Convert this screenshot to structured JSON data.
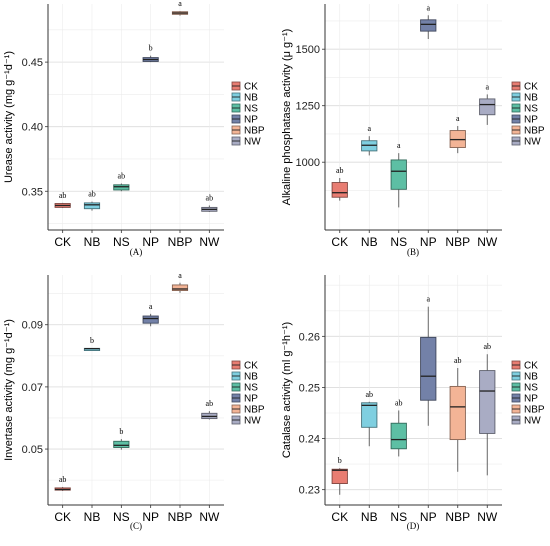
{
  "colors": {
    "CK": "#E87D72",
    "NB": "#7FCFE0",
    "NS": "#5DBFA4",
    "NP": "#7381A8",
    "NBP": "#F3B496",
    "NW": "#A9ACC4"
  },
  "chart_data": [
    {
      "type": "box",
      "panel_label": "(A)",
      "ylabel": "Urease activity (mg g⁻¹d⁻¹)",
      "categories": [
        "CK",
        "NB",
        "NS",
        "NP",
        "NBP",
        "NW"
      ],
      "ylim": [
        0.32,
        0.495
      ],
      "yticks": [
        0.35,
        0.4,
        0.45
      ],
      "ytick_labels": [
        "0.35",
        "0.40",
        "0.45"
      ],
      "grid": true,
      "legend": "right",
      "series": [
        {
          "category": "CK",
          "min": 0.337,
          "q1": 0.3375,
          "median": 0.339,
          "q3": 0.3405,
          "max": 0.341,
          "label": "ab"
        },
        {
          "category": "NB",
          "min": 0.335,
          "q1": 0.3365,
          "median": 0.3395,
          "q3": 0.341,
          "max": 0.342,
          "label": "ab"
        },
        {
          "category": "NS",
          "min": 0.35,
          "q1": 0.351,
          "median": 0.3535,
          "q3": 0.355,
          "max": 0.356,
          "label": "ab"
        },
        {
          "category": "NP",
          "min": 0.45,
          "q1": 0.4505,
          "median": 0.452,
          "q3": 0.4535,
          "max": 0.455,
          "label": "b"
        },
        {
          "category": "NBP",
          "min": 0.486,
          "q1": 0.487,
          "median": 0.488,
          "q3": 0.489,
          "max": 0.4895,
          "label": "a"
        },
        {
          "category": "NW",
          "min": 0.334,
          "q1": 0.3345,
          "median": 0.336,
          "q3": 0.3375,
          "max": 0.339,
          "label": "ab"
        }
      ]
    },
    {
      "type": "box",
      "panel_label": "(B)",
      "ylabel": "Alkaline phosphatase activity (μ g⁻¹)",
      "categories": [
        "CK",
        "NB",
        "NS",
        "NP",
        "NBP",
        "NW"
      ],
      "ylim": [
        700,
        1700
      ],
      "yticks": [
        1000,
        1250,
        1500
      ],
      "ytick_labels": [
        "1000",
        "1250",
        "1500"
      ],
      "grid": true,
      "legend": "right",
      "series": [
        {
          "category": "CK",
          "min": 830,
          "q1": 845,
          "median": 865,
          "q3": 910,
          "max": 930,
          "label": "ab"
        },
        {
          "category": "NB",
          "min": 1030,
          "q1": 1050,
          "median": 1075,
          "q3": 1095,
          "max": 1115,
          "label": "a"
        },
        {
          "category": "NS",
          "min": 800,
          "q1": 880,
          "median": 960,
          "q3": 1010,
          "max": 1040,
          "label": "a"
        },
        {
          "category": "NP",
          "min": 1545,
          "q1": 1580,
          "median": 1610,
          "q3": 1630,
          "max": 1650,
          "label": "a"
        },
        {
          "category": "NBP",
          "min": 1040,
          "q1": 1065,
          "median": 1100,
          "q3": 1140,
          "max": 1160,
          "label": "a"
        },
        {
          "category": "NW",
          "min": 1165,
          "q1": 1210,
          "median": 1255,
          "q3": 1280,
          "max": 1300,
          "label": "a"
        }
      ]
    },
    {
      "type": "box",
      "panel_label": "(C)",
      "ylabel": "Invertase activity (mg g⁻¹d⁻¹)",
      "categories": [
        "CK",
        "NB",
        "NS",
        "NP",
        "NBP",
        "NW"
      ],
      "ylim": [
        0.032,
        0.106
      ],
      "yticks": [
        0.05,
        0.07,
        0.09
      ],
      "ytick_labels": [
        "0.05",
        "0.07",
        "0.09"
      ],
      "grid": true,
      "legend": "right",
      "series": [
        {
          "category": "CK",
          "min": 0.0365,
          "q1": 0.0368,
          "median": 0.037,
          "q3": 0.0375,
          "max": 0.0378,
          "label": "ab"
        },
        {
          "category": "NB",
          "min": 0.082,
          "q1": 0.0822,
          "median": 0.0823,
          "q3": 0.0824,
          "max": 0.0825,
          "label": "b"
        },
        {
          "category": "NS",
          "min": 0.0498,
          "q1": 0.0505,
          "median": 0.0512,
          "q3": 0.0525,
          "max": 0.0532,
          "label": "b"
        },
        {
          "category": "NP",
          "min": 0.0895,
          "q1": 0.0905,
          "median": 0.092,
          "q3": 0.0928,
          "max": 0.0935,
          "label": "a"
        },
        {
          "category": "NBP",
          "min": 0.1003,
          "q1": 0.101,
          "median": 0.1015,
          "q3": 0.1028,
          "max": 0.1035,
          "label": "a"
        },
        {
          "category": "NW",
          "min": 0.0595,
          "q1": 0.0598,
          "median": 0.0605,
          "q3": 0.0615,
          "max": 0.0622,
          "label": "ab"
        }
      ]
    },
    {
      "type": "box",
      "panel_label": "(D)",
      "ylabel": "Catalase activity (ml g⁻¹h⁻¹)",
      "categories": [
        "CK",
        "NB",
        "NS",
        "NP",
        "NBP",
        "NW"
      ],
      "ylim": [
        0.227,
        0.272
      ],
      "yticks": [
        0.23,
        0.24,
        0.25,
        0.26
      ],
      "ytick_labels": [
        "0.23",
        "0.24",
        "0.25",
        "0.26"
      ],
      "grid": true,
      "legend": "right",
      "series": [
        {
          "category": "CK",
          "min": 0.229,
          "q1": 0.2312,
          "median": 0.2338,
          "q3": 0.234,
          "max": 0.2342,
          "label": "b"
        },
        {
          "category": "NB",
          "min": 0.2385,
          "q1": 0.2422,
          "median": 0.2465,
          "q3": 0.247,
          "max": 0.2472,
          "label": "ab"
        },
        {
          "category": "NS",
          "min": 0.2365,
          "q1": 0.238,
          "median": 0.2398,
          "q3": 0.243,
          "max": 0.2455,
          "label": "ab"
        },
        {
          "category": "NP",
          "min": 0.2425,
          "q1": 0.2475,
          "median": 0.2522,
          "q3": 0.2598,
          "max": 0.2658,
          "label": "a"
        },
        {
          "category": "NBP",
          "min": 0.2335,
          "q1": 0.2398,
          "median": 0.2462,
          "q3": 0.2502,
          "max": 0.2538,
          "label": "ab"
        },
        {
          "category": "NW",
          "min": 0.2328,
          "q1": 0.241,
          "median": 0.2493,
          "q3": 0.2533,
          "max": 0.2565,
          "label": "ab"
        }
      ]
    }
  ]
}
